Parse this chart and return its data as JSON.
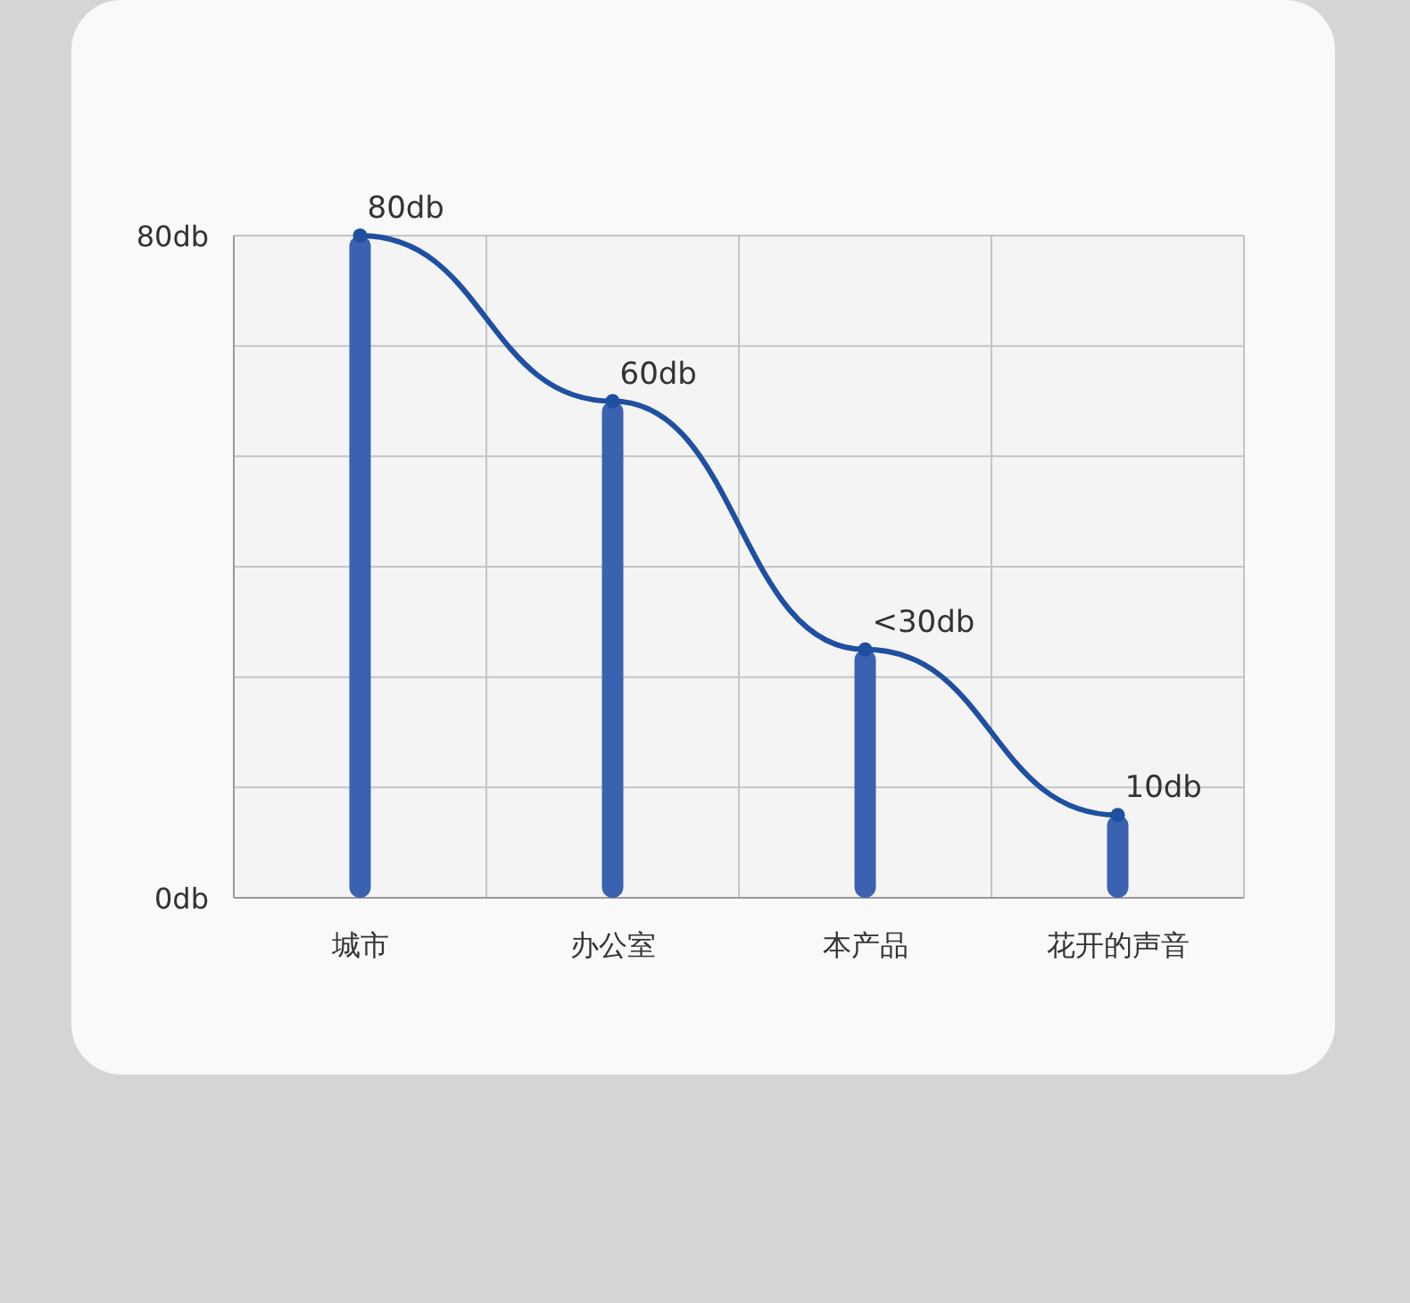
{
  "chart_data": {
    "type": "bar",
    "categories": [
      "城市",
      "办公室",
      "本产品",
      "花开的声音"
    ],
    "ylim": [
      0,
      80
    ],
    "yticks": [
      {
        "value": 0,
        "label": "0db"
      },
      {
        "value": 13.33,
        "label": null
      },
      {
        "value": 26.67,
        "label": null
      },
      {
        "value": 40,
        "label": null
      },
      {
        "value": 53.33,
        "label": null
      },
      {
        "value": 66.67,
        "label": null
      },
      {
        "value": 80,
        "label": "80db"
      }
    ],
    "grid": true,
    "series": [
      {
        "type": "bar",
        "color": "#3b62b0",
        "values": [
          80,
          60,
          30,
          10
        ]
      },
      {
        "type": "line",
        "color": "#1f4fa0",
        "marker": "circle",
        "values": [
          80,
          60,
          30,
          10
        ],
        "value_labels": [
          "80db",
          "60db",
          "<30db",
          "10db"
        ]
      }
    ]
  }
}
